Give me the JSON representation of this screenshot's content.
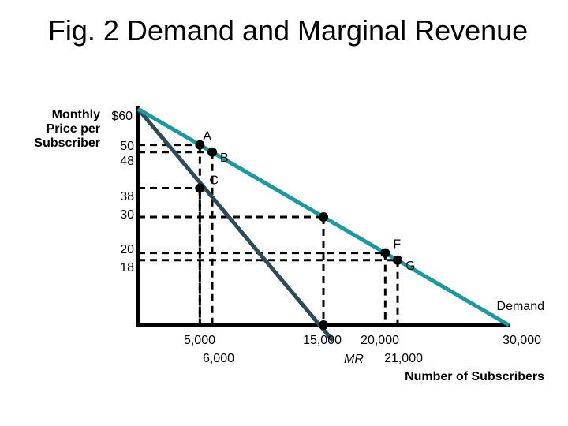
{
  "title": "Fig. 2 Demand and Marginal Revenue",
  "chart_data": {
    "type": "line",
    "title": "Fig. 2 Demand and Marginal Revenue",
    "ylabel": [
      "Monthly",
      "Price per",
      "Subscriber"
    ],
    "xlabel": "Number of Subscribers",
    "xlim": [
      0,
      30000
    ],
    "ylim": [
      0,
      60
    ],
    "y_ticks": [
      {
        "value": 60,
        "label": "$60"
      },
      {
        "value": 50,
        "label": "50"
      },
      {
        "value": 48,
        "label": "48"
      },
      {
        "value": 38,
        "label": "38"
      },
      {
        "value": 30,
        "label": "30"
      },
      {
        "value": 20,
        "label": "20"
      },
      {
        "value": 18,
        "label": "18"
      }
    ],
    "x_ticks": [
      {
        "value": 5000,
        "label": "5,000"
      },
      {
        "value": 6000,
        "label": "6,000"
      },
      {
        "value": 15000,
        "label": "15,000"
      },
      {
        "value": 20000,
        "label": "20,000"
      },
      {
        "value": 21000,
        "label": "21,000"
      },
      {
        "value": 30000,
        "label": "30,000"
      }
    ],
    "series": [
      {
        "name": "Demand",
        "color": "#1a9aa0",
        "x": [
          0,
          30000
        ],
        "y": [
          60,
          0
        ]
      },
      {
        "name": "MR",
        "color": "#2b4a5a",
        "x": [
          0,
          15000
        ],
        "y": [
          60,
          0
        ]
      }
    ],
    "points": [
      {
        "label": "A",
        "x": 5000,
        "y": 50
      },
      {
        "label": "B",
        "x": 6000,
        "y": 48
      },
      {
        "label": "C",
        "x": 5000,
        "y": 38
      },
      {
        "label": "",
        "x": 15000,
        "y": 30
      },
      {
        "label": "F",
        "x": 20000,
        "y": 20
      },
      {
        "label": "G",
        "x": 21000,
        "y": 18
      },
      {
        "label": "",
        "x": 15000,
        "y": 0
      }
    ],
    "guides": [
      {
        "y": 50,
        "x": 5000
      },
      {
        "y": 48,
        "x": 6000
      },
      {
        "y": 38,
        "x": 5000
      },
      {
        "y": 30,
        "x": 15000
      },
      {
        "y": 20,
        "x": 20000
      },
      {
        "y": 18,
        "x": 21000
      }
    ]
  }
}
